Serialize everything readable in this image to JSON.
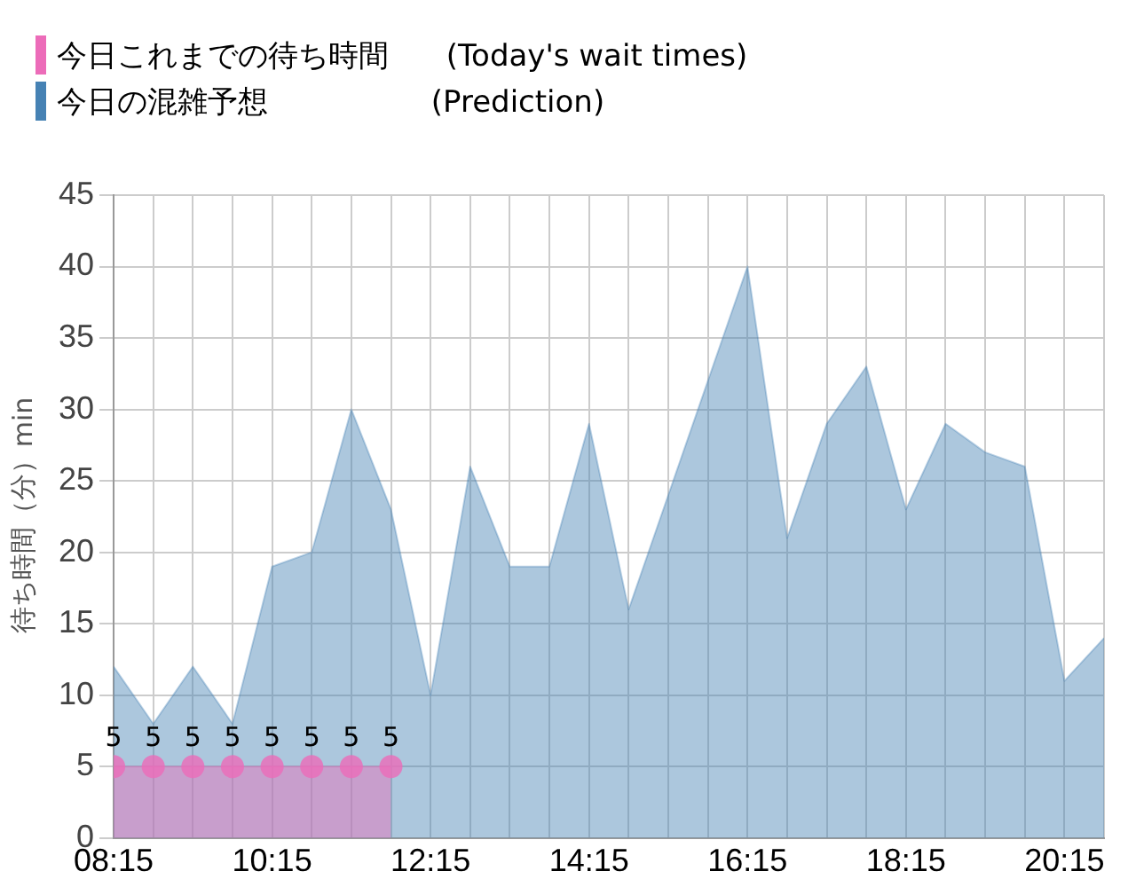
{
  "chart_data": {
    "type": "area",
    "ylabel": "待ち時間（分）min",
    "legend": "top left",
    "grid": true,
    "xlim": [
      8.25,
      20.75
    ],
    "ylim": [
      0,
      45
    ],
    "yticks": [
      0,
      5,
      10,
      15,
      20,
      25,
      30,
      35,
      40,
      45
    ],
    "xticks": [
      {
        "value": 8.25,
        "label": "08:15"
      },
      {
        "value": 8.75,
        "label": null
      },
      {
        "value": 9.25,
        "label": null
      },
      {
        "value": 9.75,
        "label": null
      },
      {
        "value": 10.25,
        "label": "10:15"
      },
      {
        "value": 10.75,
        "label": null
      },
      {
        "value": 11.25,
        "label": null
      },
      {
        "value": 11.75,
        "label": null
      },
      {
        "value": 12.25,
        "label": "12:15"
      },
      {
        "value": 12.75,
        "label": null
      },
      {
        "value": 13.25,
        "label": null
      },
      {
        "value": 13.75,
        "label": null
      },
      {
        "value": 14.25,
        "label": "14:15"
      },
      {
        "value": 14.75,
        "label": null
      },
      {
        "value": 15.25,
        "label": null
      },
      {
        "value": 15.75,
        "label": null
      },
      {
        "value": 16.25,
        "label": "16:15"
      },
      {
        "value": 16.75,
        "label": null
      },
      {
        "value": 17.25,
        "label": null
      },
      {
        "value": 17.75,
        "label": null
      },
      {
        "value": 18.25,
        "label": "18:15"
      },
      {
        "value": 18.75,
        "label": null
      },
      {
        "value": 19.25,
        "label": null
      },
      {
        "value": 19.75,
        "label": null
      },
      {
        "value": 20.25,
        "label": "20:15"
      },
      {
        "value": 20.75,
        "label": null
      }
    ],
    "series": [
      {
        "name": "今日これまでの待ち時間      (Today's wait times)",
        "color": "#ec6cb9",
        "marker": "circle",
        "x": [
          8.25,
          8.75,
          9.25,
          9.75,
          10.25,
          10.75,
          11.25,
          11.75
        ],
        "values": [
          5,
          5,
          5,
          5,
          5,
          5,
          5,
          5
        ],
        "value_labels": [
          "5",
          "5",
          "5",
          "5",
          "5",
          "5",
          "5",
          "5"
        ]
      },
      {
        "name": "今日の混雑予想                 (Prediction)",
        "color": "#4682b4",
        "marker": "none",
        "x": [
          8.25,
          8.75,
          9.25,
          9.75,
          10.25,
          10.75,
          11.25,
          11.75,
          12.25,
          12.75,
          13.25,
          13.75,
          14.25,
          14.75,
          15.25,
          15.75,
          16.25,
          16.75,
          17.25,
          17.75,
          18.25,
          18.75,
          19.25,
          19.75,
          20.25,
          20.75
        ],
        "values": [
          12,
          8,
          12,
          8,
          19,
          20,
          30,
          23,
          10,
          26,
          19,
          19,
          29,
          16,
          24,
          32,
          40,
          21,
          29,
          33,
          23,
          29,
          27,
          26,
          11,
          14
        ]
      }
    ]
  }
}
